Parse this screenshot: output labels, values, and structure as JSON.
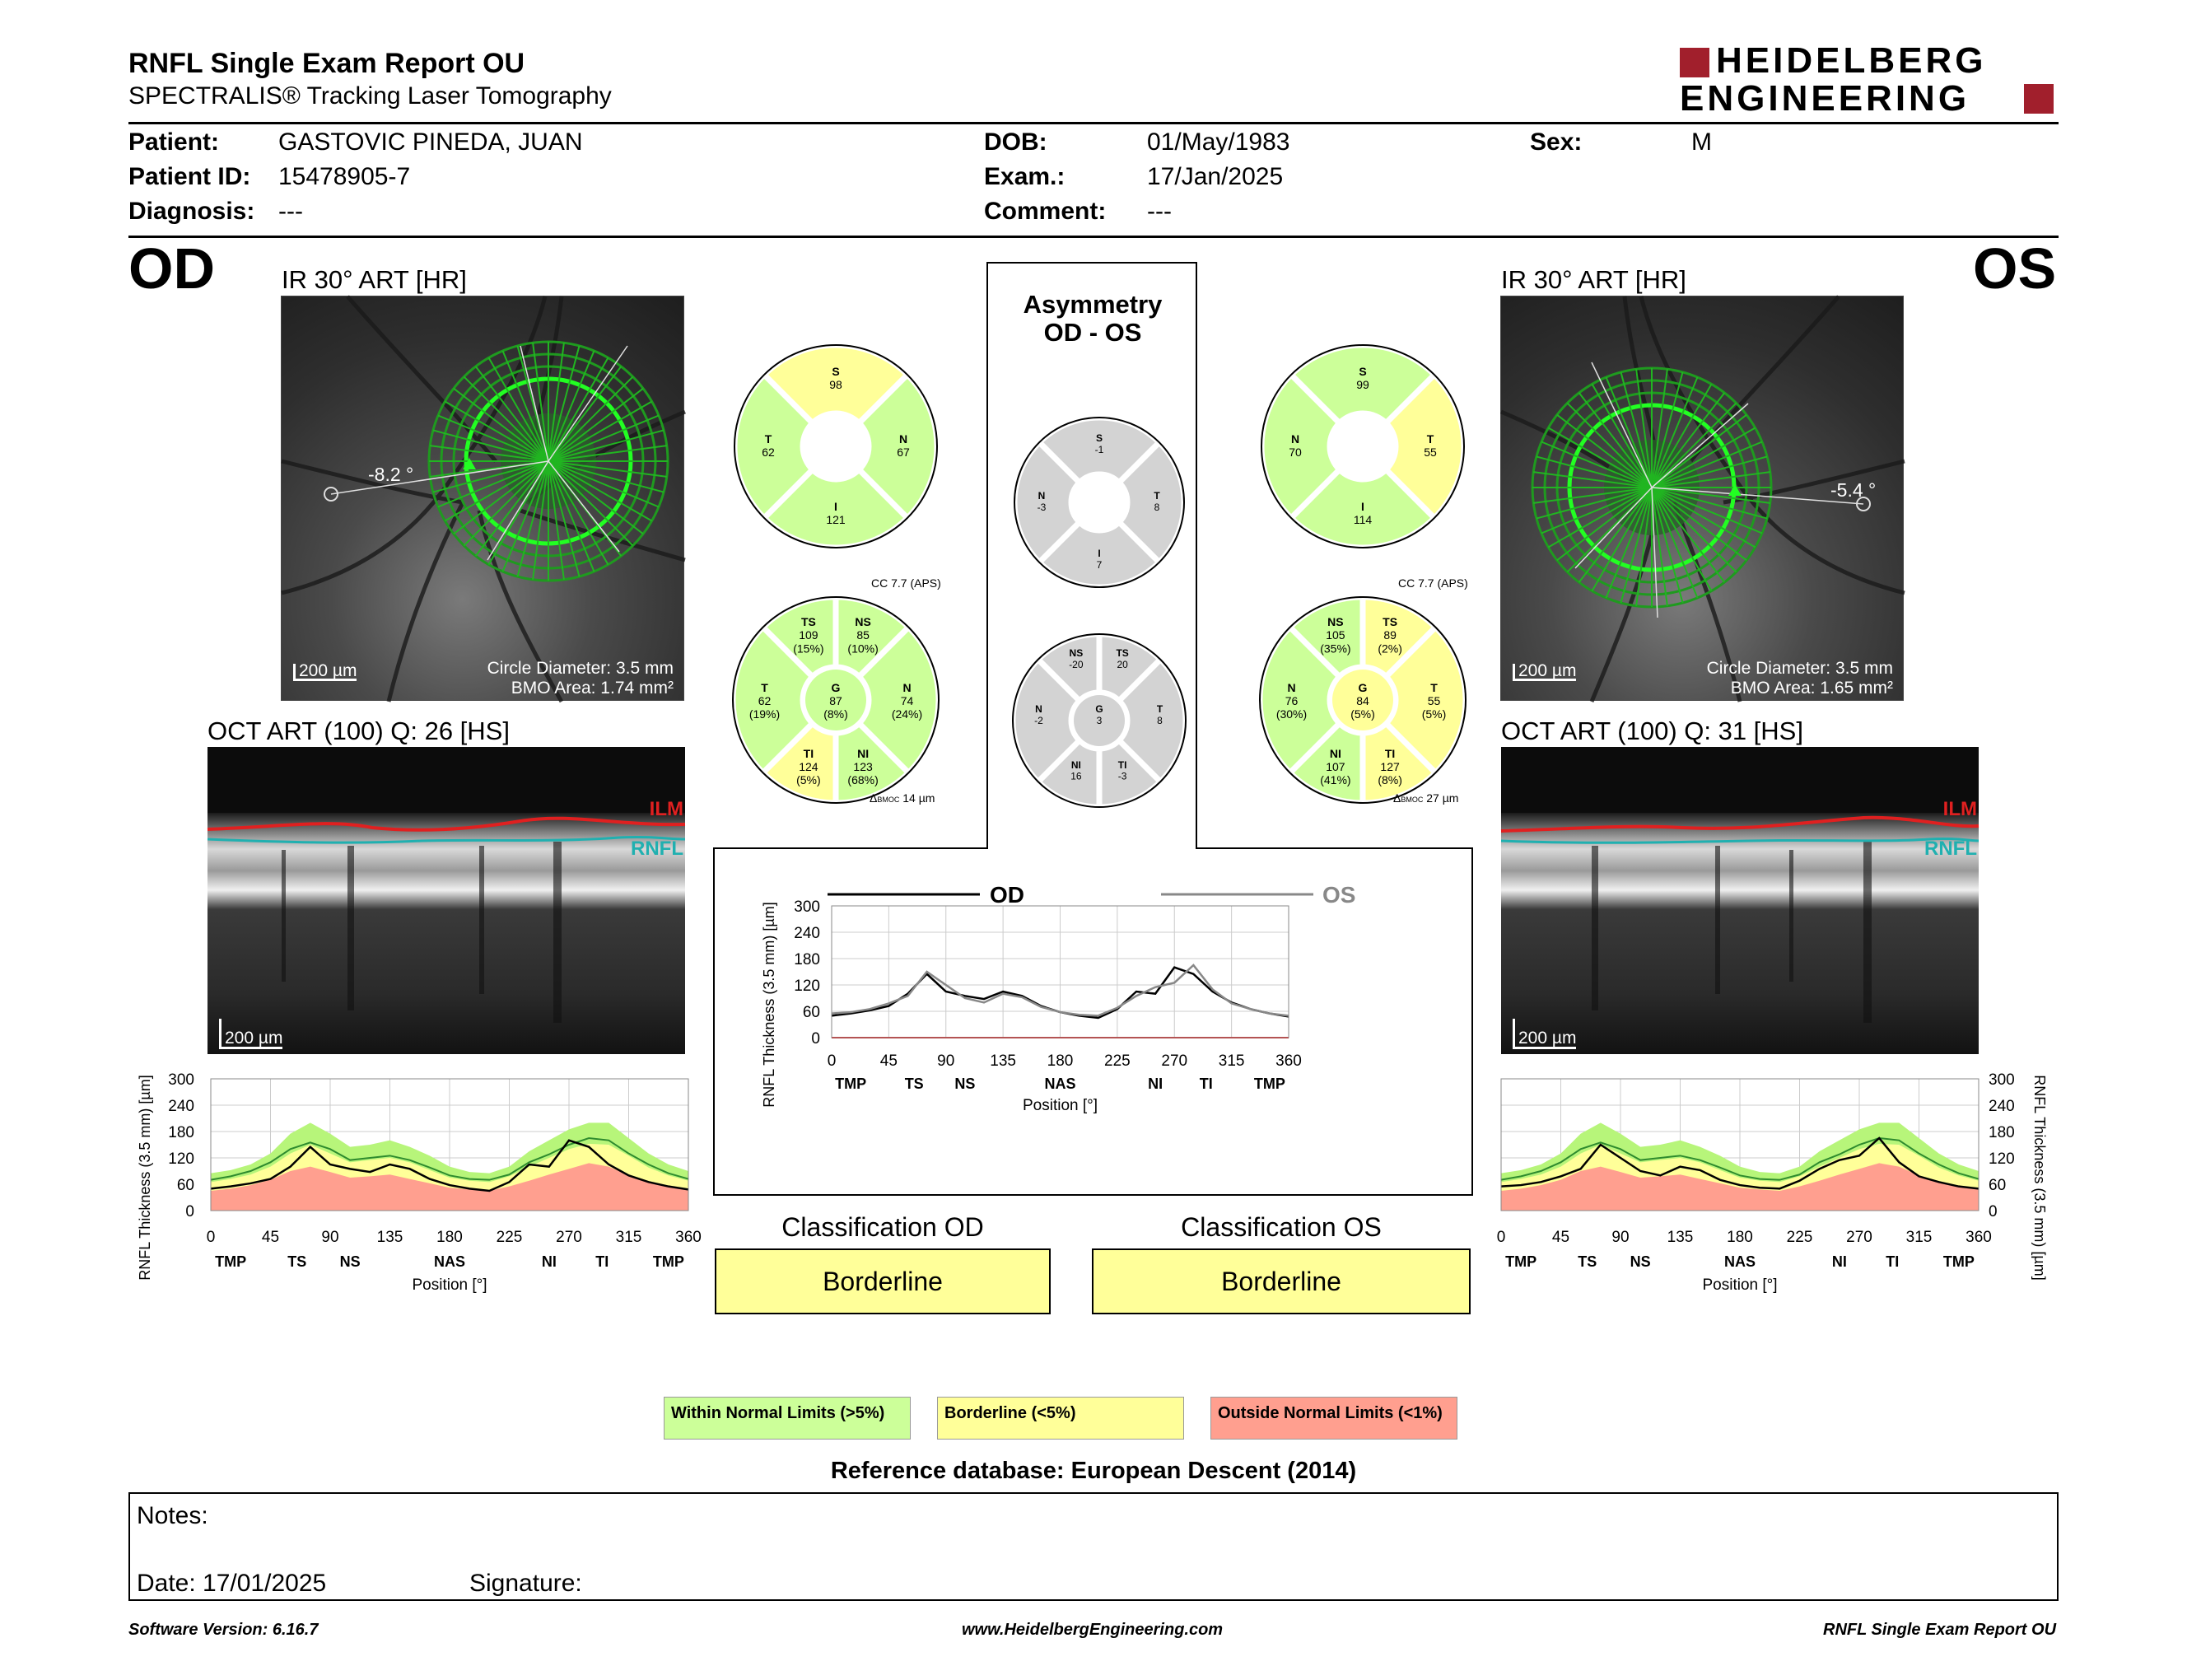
{
  "header": {
    "title": "RNFL Single Exam Report OU",
    "subtitle": "SPECTRALIS® Tracking Laser Tomography",
    "logo_line1": "HEIDELBERG",
    "logo_line2": "ENGINEERING"
  },
  "patient": {
    "patient_label": "Patient:",
    "patient_value": "GASTOVIC PINEDA, JUAN",
    "id_label": "Patient ID:",
    "id_value": "15478905-7",
    "diag_label": "Diagnosis:",
    "diag_value": "---",
    "dob_label": "DOB:",
    "dob_value": "01/May/1983",
    "exam_label": "Exam.:",
    "exam_value": "17/Jan/2025",
    "comment_label": "Comment:",
    "comment_value": "---",
    "sex_label": "Sex:",
    "sex_value": "M"
  },
  "od": {
    "eye": "OD",
    "ir_label": "IR 30° ART [HR]",
    "angle": "-8.2 °",
    "scale": "200 µm",
    "circle_diameter": "Circle Diameter: 3.5 mm",
    "bmo_area": "BMO Area: 1.74 mm²",
    "oct_label": "OCT ART (100) Q: 26 [HS]",
    "oct_scale": "200 µm",
    "ilm": "ILM",
    "rnfl": "RNFL",
    "sectors4": {
      "S": "98",
      "T": "62",
      "N": "67",
      "I": "121"
    },
    "sectors4_colors": {
      "S": "#ffff99",
      "T": "#ccff99",
      "N": "#ccff99",
      "I": "#ccff99"
    },
    "cc": "CC 7.7 (APS)",
    "sectors6": {
      "TS": [
        "TS",
        "109",
        "(15%)"
      ],
      "NS": [
        "NS",
        "85",
        "(10%)"
      ],
      "T": [
        "T",
        "62",
        "(19%)"
      ],
      "G": [
        "G",
        "87",
        "(8%)"
      ],
      "N": [
        "N",
        "74",
        "(24%)"
      ],
      "TI": [
        "TI",
        "124",
        "(5%)"
      ],
      "NI": [
        "NI",
        "123",
        "(68%)"
      ]
    },
    "sectors6_colors": {
      "TS": "#ccff99",
      "NS": "#ccff99",
      "T": "#ccff99",
      "G": "#ccff99",
      "N": "#ccff99",
      "TI": "#ffff99",
      "NI": "#ccff99"
    },
    "bmoc_symbol": "Δ",
    "bmoc_label": "BMOC",
    "bmoc_value": "14 µm",
    "classification_title": "Classification OD",
    "classification_value": "Borderline"
  },
  "os": {
    "eye": "OS",
    "ir_label": "IR 30° ART [HR]",
    "angle": "-5.4 °",
    "scale": "200 µm",
    "circle_diameter": "Circle Diameter: 3.5 mm",
    "bmo_area": "BMO Area: 1.65 mm²",
    "oct_label": "OCT ART (100) Q: 31 [HS]",
    "oct_scale": "200 µm",
    "ilm": "ILM",
    "rnfl": "RNFL",
    "sectors4": {
      "S": "99",
      "T": "55",
      "N": "70",
      "I": "114"
    },
    "sectors4_colors": {
      "S": "#ccff99",
      "T": "#ffff99",
      "N": "#ccff99",
      "I": "#ccff99"
    },
    "cc": "CC 7.7 (APS)",
    "sectors6": {
      "NS": [
        "NS",
        "105",
        "(35%)"
      ],
      "TS": [
        "TS",
        "89",
        "(2%)"
      ],
      "N": [
        "N",
        "76",
        "(30%)"
      ],
      "G": [
        "G",
        "84",
        "(5%)"
      ],
      "T": [
        "T",
        "55",
        "(5%)"
      ],
      "NI": [
        "NI",
        "107",
        "(41%)"
      ],
      "TI": [
        "TI",
        "127",
        "(8%)"
      ]
    },
    "sectors6_colors": {
      "NS": "#ccff99",
      "TS": "#ffff99",
      "N": "#ccff99",
      "G": "#ffff99",
      "T": "#ffff99",
      "NI": "#ccff99",
      "TI": "#ffff99"
    },
    "bmoc_symbol": "Δ",
    "bmoc_label": "BMOC",
    "bmoc_value": "27 µm",
    "classification_title": "Classification OS",
    "classification_value": "Borderline"
  },
  "asymmetry": {
    "title1": "Asymmetry",
    "title2": "OD - OS",
    "sectors4": {
      "S": [
        "S",
        "-1"
      ],
      "N": [
        "N",
        "-3"
      ],
      "T": [
        "T",
        "8"
      ],
      "I": [
        "I",
        "7"
      ]
    },
    "sectors6": {
      "NS": [
        "NS",
        "-20"
      ],
      "TS": [
        "TS",
        "20"
      ],
      "N": [
        "N",
        "-2"
      ],
      "G": [
        "G",
        "3"
      ],
      "T": [
        "T",
        "8"
      ],
      "NI": [
        "NI",
        "16"
      ],
      "TI": [
        "TI",
        "-3"
      ]
    }
  },
  "charts": {
    "ylabel": "RNFL Thickness (3.5 mm) [µm]",
    "xlabel": "Position [°]",
    "sector_labels": [
      "TMP",
      "TS",
      "NS",
      "NAS",
      "NI",
      "TI",
      "TMP"
    ],
    "legend_od": "OD",
    "legend_os": "OS"
  },
  "chart_data": [
    {
      "type": "line",
      "id": "od-profile",
      "x": [
        0,
        15,
        30,
        45,
        60,
        75,
        90,
        105,
        120,
        135,
        150,
        165,
        180,
        195,
        210,
        225,
        240,
        255,
        270,
        285,
        300,
        315,
        330,
        345,
        360
      ],
      "series": [
        {
          "values": [
            50,
            55,
            62,
            72,
            100,
            145,
            105,
            95,
            88,
            105,
            95,
            72,
            58,
            50,
            45,
            65,
            105,
            100,
            160,
            145,
            105,
            80,
            65,
            55,
            48
          ]
        }
      ],
      "bands": {
        "outer_normal": [
          85,
          92,
          105,
          130,
          175,
          200,
          175,
          145,
          150,
          160,
          145,
          125,
          100,
          88,
          85,
          100,
          135,
          160,
          185,
          200,
          200,
          165,
          130,
          105,
          90
        ],
        "borderline": [
          65,
          72,
          82,
          100,
          130,
          150,
          130,
          110,
          115,
          120,
          110,
          92,
          75,
          68,
          65,
          78,
          100,
          120,
          140,
          152,
          150,
          125,
          98,
          80,
          68
        ],
        "outside": [
          45,
          50,
          58,
          70,
          90,
          100,
          88,
          75,
          78,
          82,
          72,
          62,
          52,
          48,
          45,
          55,
          68,
          82,
          95,
          108,
          100,
          80,
          65,
          55,
          48
        ],
        "mean": [
          70,
          78,
          90,
          110,
          140,
          155,
          140,
          115,
          120,
          125,
          115,
          98,
          80,
          72,
          70,
          82,
          110,
          128,
          150,
          165,
          160,
          130,
          105,
          85,
          72
        ]
      },
      "ylim": [
        0,
        300
      ],
      "xlim": [
        0,
        360
      ],
      "yticks": [
        0,
        60,
        120,
        180,
        240,
        300
      ],
      "xticks": [
        0,
        45,
        90,
        135,
        180,
        225,
        270,
        315,
        360
      ]
    },
    {
      "type": "line",
      "id": "os-profile",
      "x": [
        0,
        15,
        30,
        45,
        60,
        75,
        90,
        105,
        120,
        135,
        150,
        165,
        180,
        195,
        210,
        225,
        240,
        255,
        270,
        285,
        300,
        315,
        330,
        345,
        360
      ],
      "series": [
        {
          "values": [
            55,
            58,
            65,
            78,
            95,
            150,
            120,
            90,
            80,
            100,
            92,
            70,
            58,
            52,
            50,
            68,
            95,
            115,
            125,
            165,
            110,
            78,
            65,
            55,
            50
          ]
        }
      ],
      "bands": {
        "outer_normal": [
          85,
          92,
          105,
          130,
          175,
          200,
          175,
          145,
          150,
          160,
          145,
          125,
          100,
          88,
          85,
          100,
          135,
          160,
          185,
          200,
          200,
          165,
          130,
          105,
          90
        ],
        "borderline": [
          65,
          72,
          82,
          100,
          130,
          150,
          130,
          110,
          115,
          120,
          110,
          92,
          75,
          68,
          65,
          78,
          100,
          120,
          140,
          152,
          150,
          125,
          98,
          80,
          68
        ],
        "outside": [
          45,
          50,
          58,
          70,
          90,
          100,
          88,
          75,
          78,
          82,
          72,
          62,
          52,
          48,
          45,
          55,
          68,
          82,
          95,
          108,
          100,
          80,
          65,
          55,
          48
        ],
        "mean": [
          70,
          78,
          90,
          110,
          140,
          155,
          140,
          115,
          120,
          125,
          115,
          98,
          80,
          72,
          70,
          82,
          110,
          128,
          150,
          165,
          160,
          130,
          105,
          85,
          72
        ]
      },
      "ylim": [
        0,
        300
      ],
      "xlim": [
        0,
        360
      ],
      "yticks": [
        0,
        60,
        120,
        180,
        240,
        300
      ],
      "xticks": [
        0,
        45,
        90,
        135,
        180,
        225,
        270,
        315,
        360
      ]
    },
    {
      "type": "line",
      "id": "comparison",
      "x": [
        0,
        15,
        30,
        45,
        60,
        75,
        90,
        105,
        120,
        135,
        150,
        165,
        180,
        195,
        210,
        225,
        240,
        255,
        270,
        285,
        300,
        315,
        330,
        345,
        360
      ],
      "series": [
        {
          "name": "OD",
          "values": [
            50,
            55,
            62,
            72,
            100,
            145,
            105,
            95,
            88,
            105,
            95,
            72,
            58,
            50,
            45,
            65,
            105,
            100,
            160,
            145,
            105,
            80,
            65,
            55,
            48
          ]
        },
        {
          "name": "OS",
          "values": [
            55,
            58,
            65,
            78,
            95,
            150,
            120,
            90,
            80,
            100,
            92,
            70,
            58,
            52,
            50,
            68,
            95,
            115,
            125,
            165,
            110,
            78,
            65,
            55,
            50
          ]
        }
      ],
      "ylim": [
        0,
        300
      ],
      "xlim": [
        0,
        360
      ],
      "yticks": [
        0,
        60,
        120,
        180,
        240,
        300
      ],
      "xticks": [
        0,
        45,
        90,
        135,
        180,
        225,
        270,
        315,
        360
      ]
    }
  ],
  "legend": {
    "within": "Within Normal Limits (>5%)",
    "borderline": "Borderline (<5%)",
    "outside": "Outside Normal Limits (<1%)"
  },
  "colors": {
    "within": "#ccff99",
    "borderline": "#ffff99",
    "outside": "#ff9f8f",
    "grey": "#d3d3d3",
    "ilm": "#e02020",
    "rnfl": "#20b0b0",
    "logo_red": "#a11f2c"
  },
  "reference_db": "Reference database: European Descent (2014)",
  "notes": {
    "notes_label": "Notes:",
    "date_label": "Date: 17/01/2025",
    "signature_label": "Signature:"
  },
  "footer": {
    "software": "Software Version: 6.16.7",
    "website": "www.HeidelbergEngineering.com",
    "report_name": "RNFL Single Exam Report OU"
  }
}
